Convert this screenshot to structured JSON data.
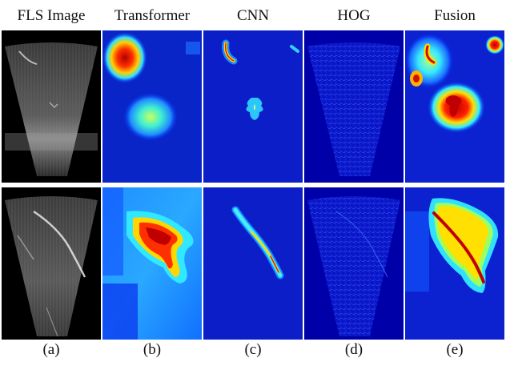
{
  "columns": [
    {
      "title": "FLS Image",
      "label": "(a)",
      "kind": "sonar"
    },
    {
      "title": "Transformer",
      "label": "(b)",
      "kind": "transformer"
    },
    {
      "title": "CNN",
      "label": "(c)",
      "kind": "cnn"
    },
    {
      "title": "HOG",
      "label": "(d)",
      "kind": "hog"
    },
    {
      "title": "Fusion",
      "label": "(e)",
      "kind": "fusion"
    }
  ],
  "rows": [
    {
      "name": "row-top-sample"
    },
    {
      "name": "row-bottom-sample"
    }
  ],
  "colors": {
    "jet_low": "#00008f",
    "jet_mid": "#0030ff",
    "jet_cyan": "#20e0ff",
    "jet_yellow": "#ffe600",
    "jet_red": "#c80000",
    "sonar_bg": "#000000"
  }
}
